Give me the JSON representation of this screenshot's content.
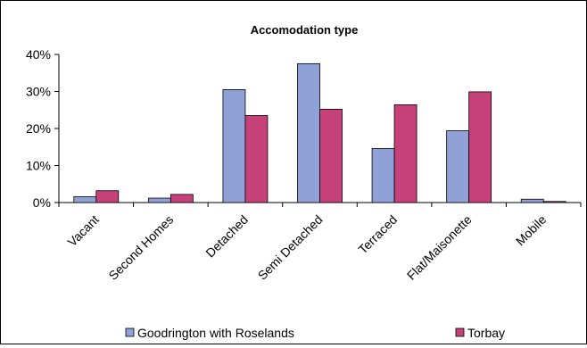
{
  "chart_data": {
    "type": "bar",
    "title": "Accomodation type",
    "xlabel": "",
    "ylabel": "",
    "categories": [
      "Vacant",
      "Second Homes",
      "Detached",
      "Semi Detached",
      "Terraced",
      "Flat/Maisonette",
      "Mobile"
    ],
    "series": [
      {
        "name": "Goodrington with Roselands",
        "color": "#8FA1D6",
        "values": [
          1.6,
          1.2,
          30.5,
          37.5,
          14.6,
          19.4,
          0.9
        ]
      },
      {
        "name": "Torbay",
        "color": "#C6417A",
        "values": [
          3.2,
          2.2,
          23.5,
          25.2,
          26.4,
          29.9,
          0.3
        ]
      }
    ],
    "ylim": [
      0,
      40
    ],
    "yticks": [
      "0%",
      "10%",
      "20%",
      "30%",
      "40%"
    ],
    "ytick_values": [
      0,
      10,
      20,
      30,
      40
    ],
    "grid": false,
    "legend_position": "bottom"
  }
}
